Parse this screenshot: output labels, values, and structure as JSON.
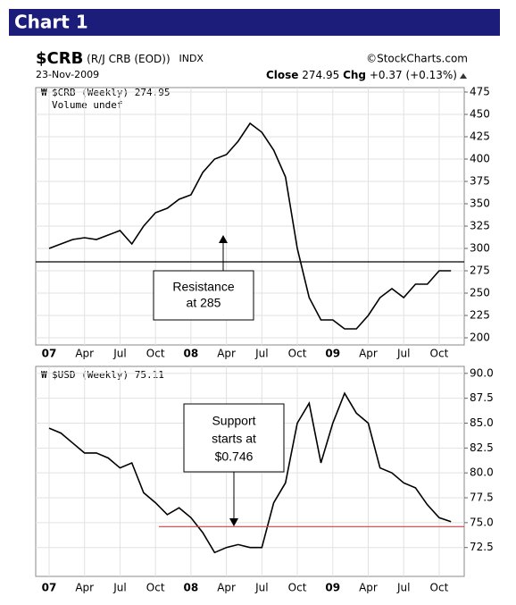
{
  "header": {
    "title": "Chart 1"
  },
  "chart_data": [
    {
      "type": "line",
      "symbol": "$CRB",
      "description": "(R/J CRB (EOD))",
      "exchange": "INDX",
      "source": "©StockCharts.com",
      "date": "23-Nov-2009",
      "close_label": "Close",
      "close": 274.95,
      "change_label": "Chg",
      "change": "+0.37 (+0.13%)",
      "volume_note": "Volume undef",
      "categories": [
        "07",
        null,
        null,
        "Apr",
        null,
        null,
        "Jul",
        null,
        null,
        "Oct",
        null,
        null,
        "08",
        null,
        null,
        "Apr",
        null,
        null,
        "Jul",
        null,
        null,
        "Oct",
        null,
        null,
        "09",
        null,
        null,
        "Apr",
        null,
        null,
        "Jul",
        null,
        null,
        "Oct",
        null
      ],
      "series": [
        {
          "name": "$CRB (Weekly) 274.95",
          "color": "#000000",
          "values": [
            300,
            305,
            310,
            312,
            310,
            315,
            320,
            305,
            325,
            340,
            345,
            355,
            360,
            385,
            400,
            405,
            420,
            440,
            430,
            410,
            380,
            300,
            245,
            220,
            220,
            210,
            210,
            225,
            245,
            255,
            245,
            260,
            260,
            275,
            275
          ]
        }
      ],
      "ylim": [
        192,
        480
      ],
      "yticks": [
        200,
        225,
        250,
        275,
        300,
        325,
        350,
        375,
        400,
        425,
        450,
        475
      ],
      "grid": true,
      "reference_line": 285,
      "reference_color": "#000000",
      "annotation": [
        "Resistance",
        "at 285"
      ]
    },
    {
      "type": "line",
      "categories": [
        "07",
        null,
        null,
        "Apr",
        null,
        null,
        "Jul",
        null,
        null,
        "Oct",
        null,
        null,
        "08",
        null,
        null,
        "Apr",
        null,
        null,
        "Jul",
        null,
        null,
        "Oct",
        null,
        null,
        "09",
        null,
        null,
        "Apr",
        null,
        null,
        "Jul",
        null,
        null,
        "Oct",
        null
      ],
      "series": [
        {
          "name": "$USD (Weekly) 75.11",
          "color": "#000000",
          "values": [
            84.5,
            84,
            83,
            82,
            82,
            81.5,
            80.5,
            81,
            78,
            77,
            75.8,
            76.5,
            75.5,
            74,
            72,
            72.5,
            72.8,
            72.5,
            72.5,
            77,
            79,
            85,
            87,
            81,
            85,
            88,
            86,
            85,
            80.5,
            80,
            79,
            78.5,
            76.8,
            75.5,
            75.1
          ]
        }
      ],
      "ylim": [
        69.6,
        90.7
      ],
      "yticks": [
        {
          "value": 72.5,
          "label": "72.5"
        },
        {
          "value": 75,
          "label": "75.0"
        },
        {
          "value": 77.5,
          "label": "77.5"
        },
        {
          "value": 80,
          "label": "80.0"
        },
        {
          "value": 82.5,
          "label": "82.5"
        },
        {
          "value": 85,
          "label": "85.0"
        },
        {
          "value": 87.5,
          "label": "87.5"
        },
        {
          "value": 90,
          "label": "90.0"
        }
      ],
      "grid": true,
      "reference_line": 74.6,
      "reference_color": "#d04040",
      "annotation": [
        "Support",
        "starts at",
        "$0.746"
      ]
    }
  ]
}
